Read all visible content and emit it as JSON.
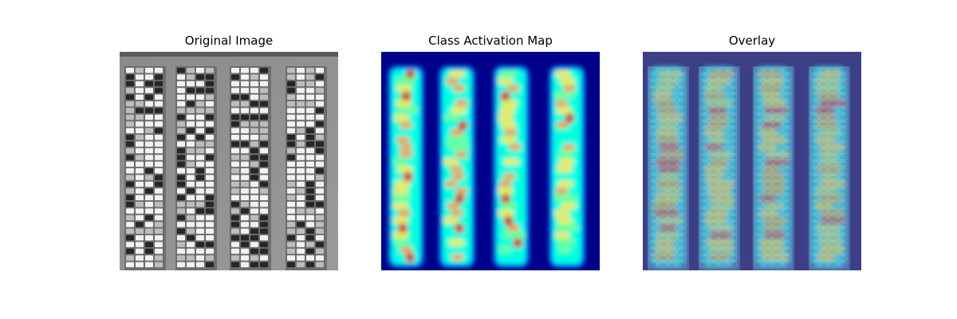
{
  "figure": {
    "panels": [
      {
        "title": "Original Image",
        "kind": "grayscale-aerial-parking-lot"
      },
      {
        "title": "Class Activation Map",
        "kind": "jet-colormap-heatmap"
      },
      {
        "title": "Overlay",
        "kind": "heatmap-over-image"
      }
    ],
    "colors": {
      "cam_background": "#00008b",
      "hot": "#d40000",
      "warm": "#ffd800",
      "cool": "#00e5ff"
    }
  }
}
